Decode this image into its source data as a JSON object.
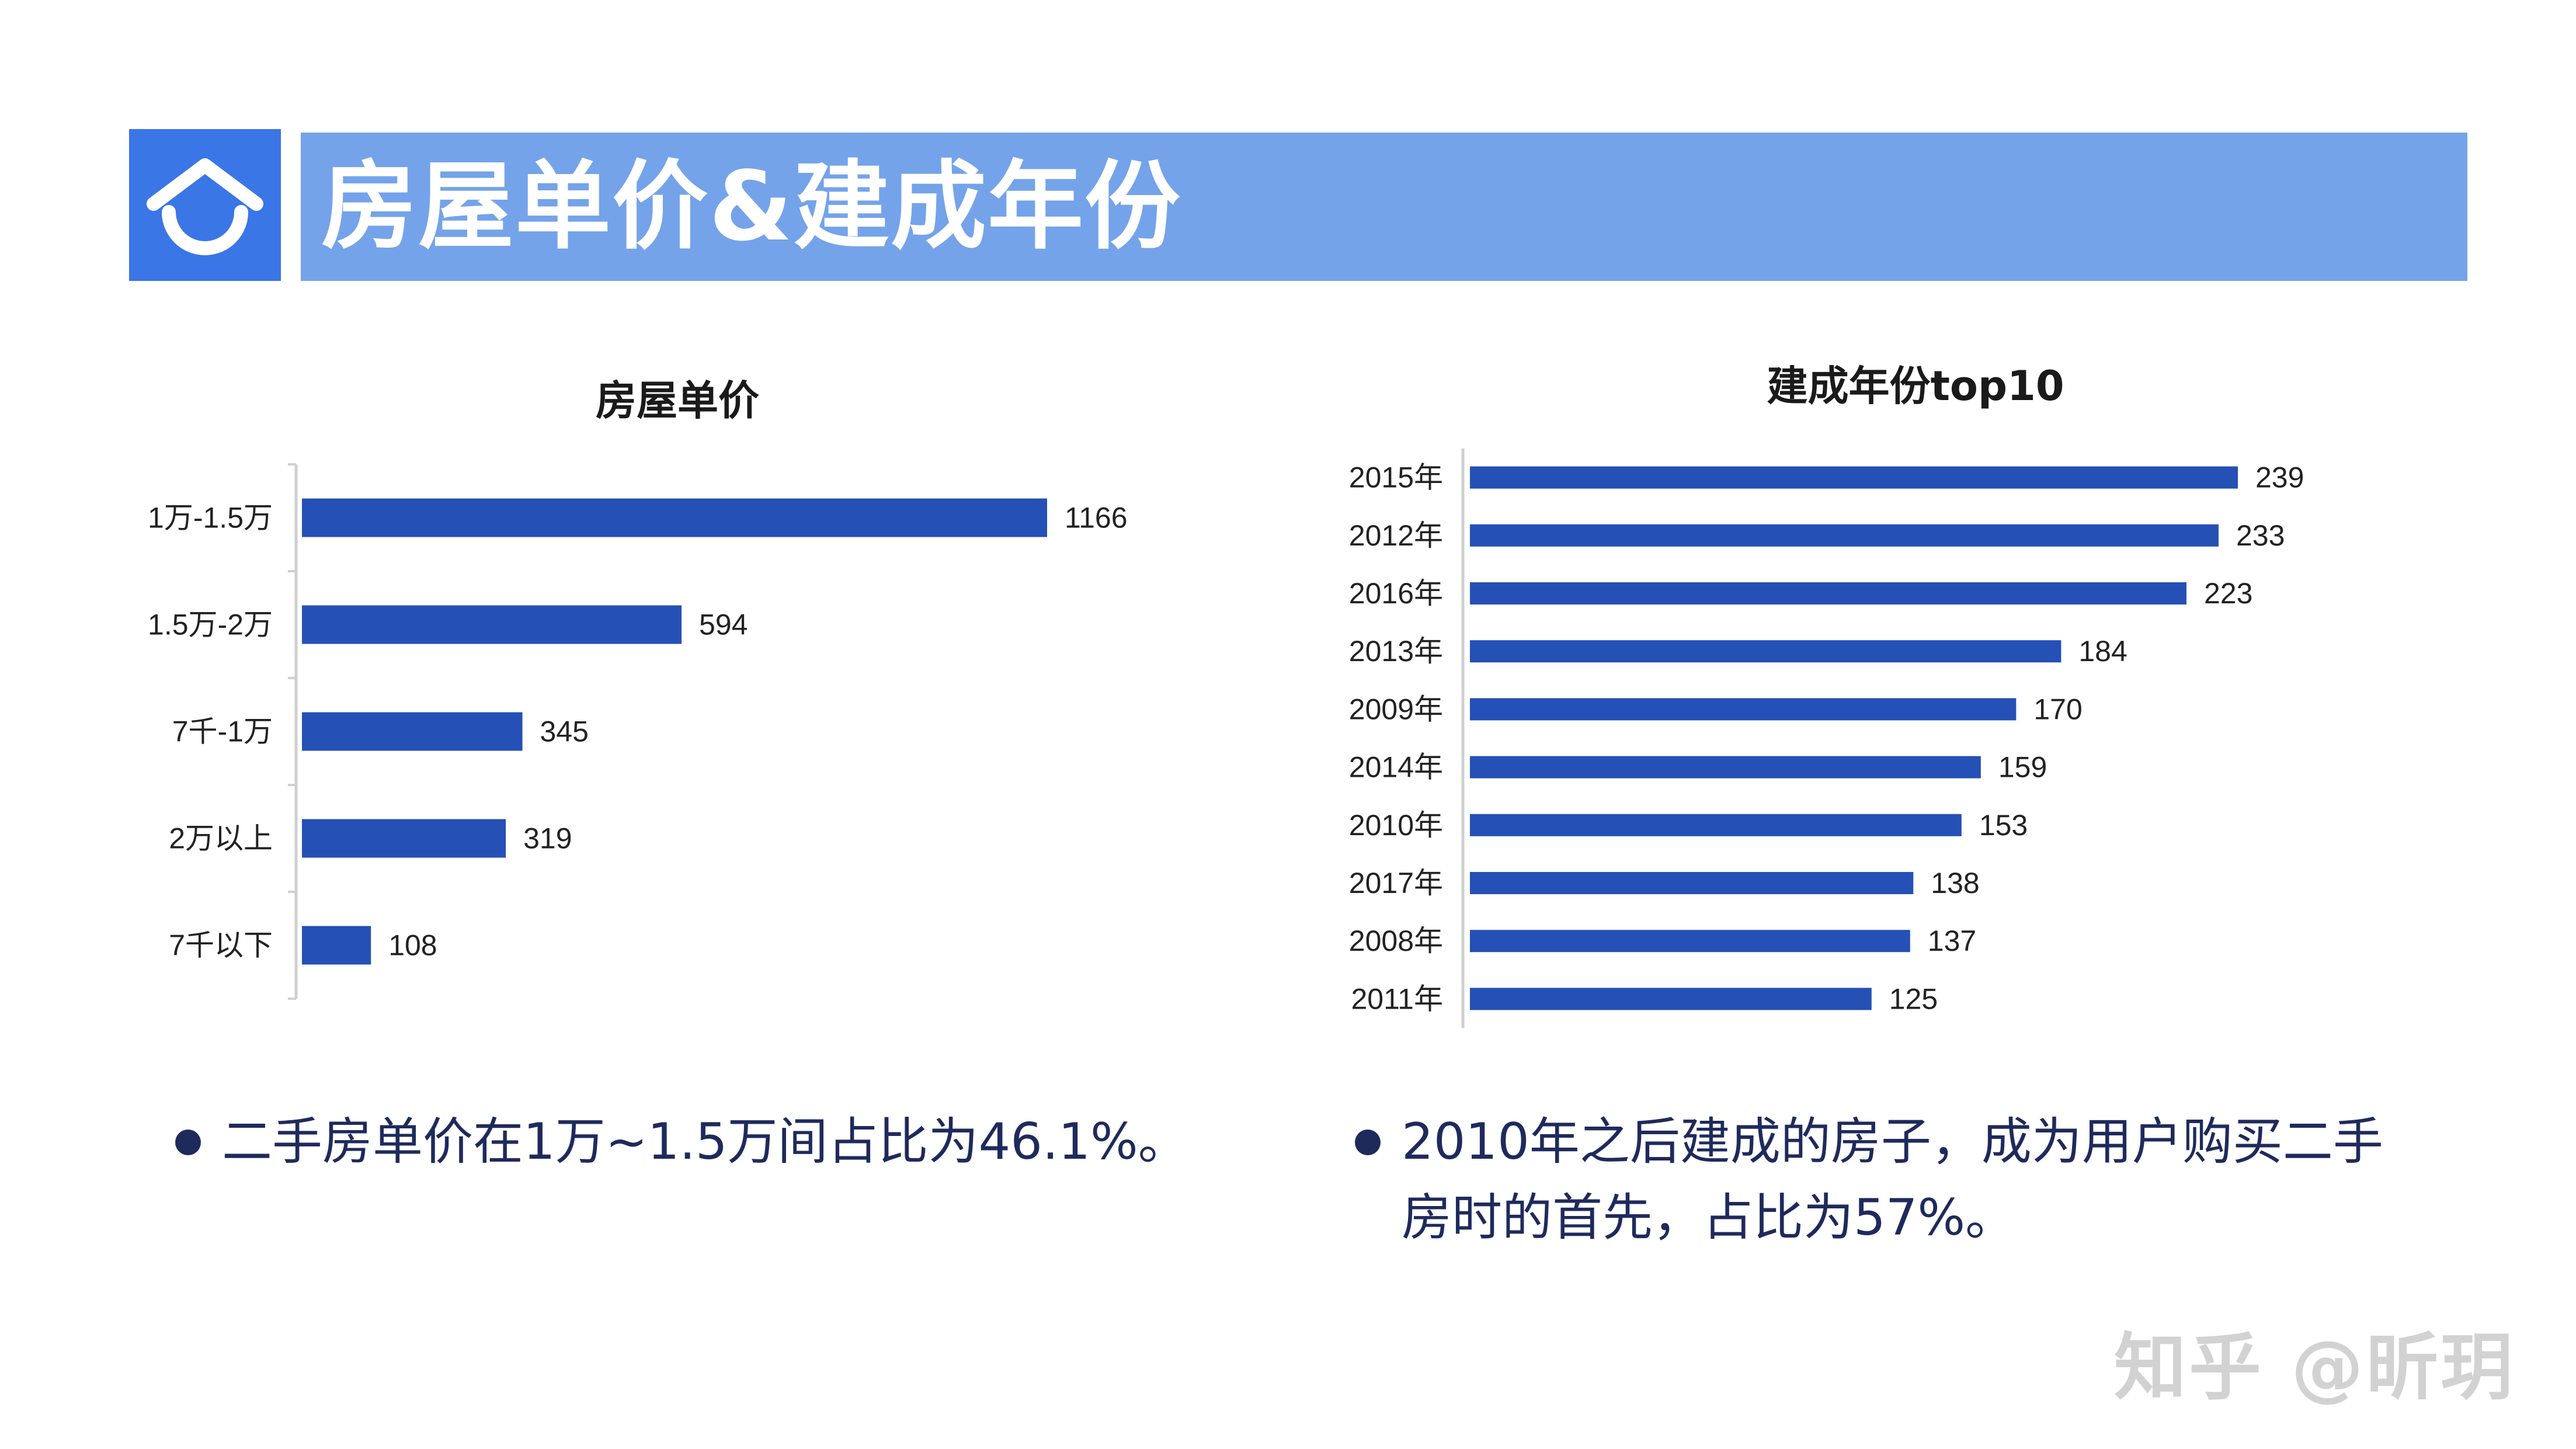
{
  "header": {
    "title": "房屋单价&建成年份",
    "logo_icon": "house-arc-icon",
    "accent": "#3a76e6",
    "bar_color": "#74a3ea"
  },
  "chart_data": [
    {
      "type": "bar",
      "orientation": "horizontal",
      "title": "房屋单价",
      "categories": [
        "1万-1.5万",
        "1.5万-2万",
        "7千-1万",
        "2万以上",
        "7千以下"
      ],
      "values": [
        1166,
        594,
        345,
        319,
        108
      ],
      "bar_color": "#2550b5",
      "data_labels": true,
      "grid": false,
      "legend": "none"
    },
    {
      "type": "bar",
      "orientation": "horizontal",
      "title": "建成年份top10",
      "categories": [
        "2015年",
        "2012年",
        "2016年",
        "2013年",
        "2009年",
        "2014年",
        "2010年",
        "2017年",
        "2008年",
        "2011年"
      ],
      "values": [
        239,
        233,
        223,
        184,
        170,
        159,
        153,
        138,
        137,
        125
      ],
      "bar_color": "#2550b5",
      "data_labels": true,
      "grid": false,
      "legend": "none"
    }
  ],
  "notes": {
    "left": "二手房单价在1万~1.5万间占比为46.1%。",
    "right_line1": "2010年之后建成的房子，成为用户购买二手",
    "right_line2": "房时的首先，占比为57%。"
  },
  "watermark": "知乎 @昕玥"
}
